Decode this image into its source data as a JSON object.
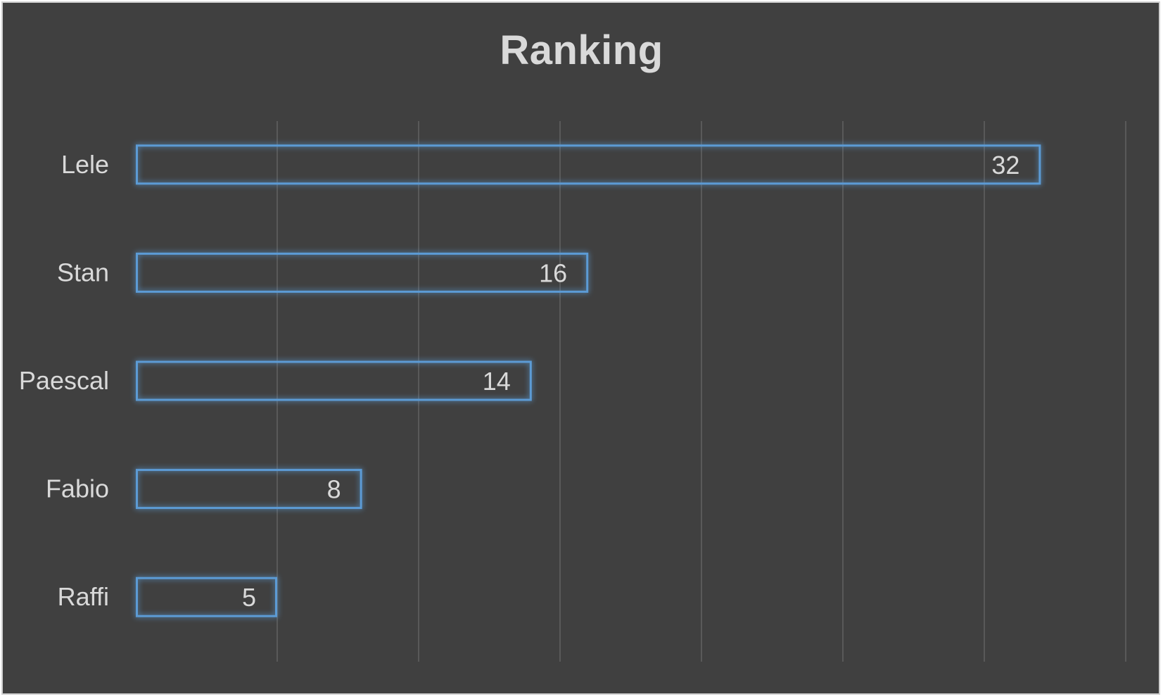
{
  "chart_data": {
    "type": "bar",
    "orientation": "horizontal",
    "title": "Ranking",
    "categories": [
      "Lele",
      "Stan",
      "Paescal",
      "Fabio",
      "Raffi"
    ],
    "values": [
      32,
      16,
      14,
      8,
      5
    ],
    "xlim": [
      0,
      35
    ],
    "grid": true,
    "data_labels": true,
    "colors": {
      "background": "#404040",
      "bar_outline": "#5b9bd5",
      "bar_glow": "#2e75b6",
      "text": "#d9d9d9",
      "grid": "#595959"
    }
  }
}
